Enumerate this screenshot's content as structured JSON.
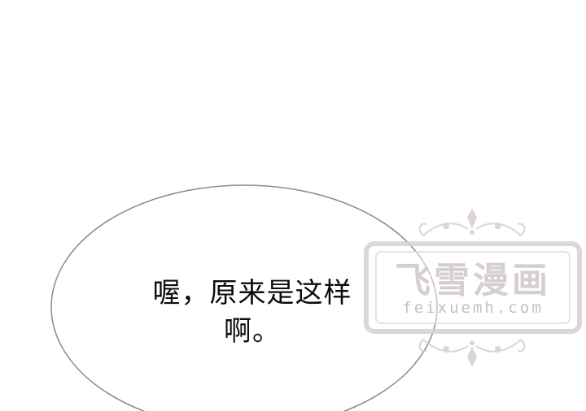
{
  "speech_bubble": {
    "line_1": "喔，原来是这样",
    "line_2": "啊。"
  },
  "watermark": {
    "title": "飞雪漫画",
    "url": "feixuemh.com"
  },
  "colors": {
    "background": "#ffffff",
    "bubble_outline": "#8a8a8a",
    "text": "#0d0d0d",
    "watermark": "#cfc6c9"
  }
}
